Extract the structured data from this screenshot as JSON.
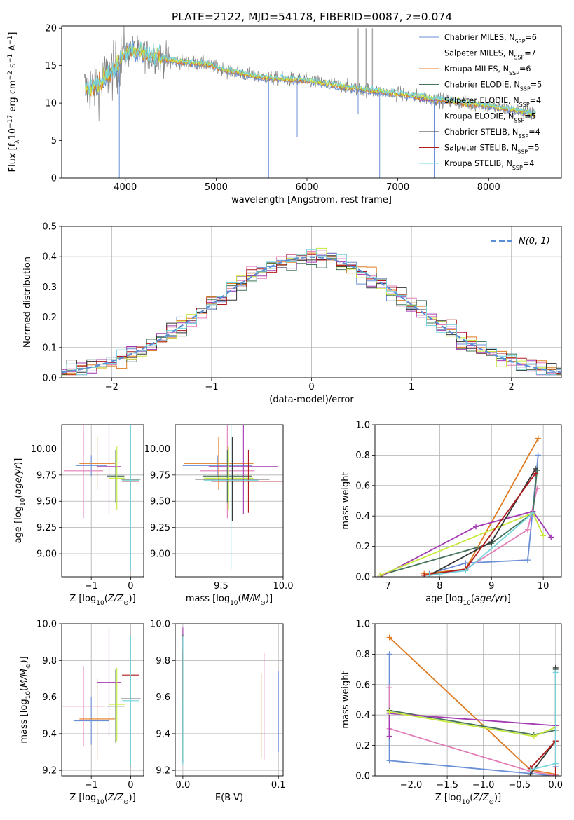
{
  "figure_title": "PLATE=2122, MJD=54178, FIBERID=0087, z=0.074",
  "colors": {
    "Chabrier MILES": "#6a8fd6",
    "Salpeter MILES": "#e27db6",
    "Kroupa MILES": "#e07b22",
    "Chabrier ELODIE": "#44735a",
    "Salpeter ELODIE": "#a33ab2",
    "Kroupa ELODIE": "#c7e83a",
    "Chabrier STELIB": "#333333",
    "Salpeter STELIB": "#b01a1a",
    "Kroupa STELIB": "#74d4dc",
    "data": "#808080",
    "normal_curve": "#5b8ed6"
  },
  "chart_data": [
    {
      "id": "spectrum",
      "type": "line",
      "xlabel": "wavelength [Angstrom, rest frame]",
      "ylabel": "Flux [f",
      "xlim": [
        3300,
        8800
      ],
      "ylim": [
        0,
        20.3
      ],
      "xticks": [
        4000,
        5000,
        6000,
        7000,
        8000
      ],
      "yticks": [
        0,
        5,
        10,
        15,
        20
      ],
      "grid": false,
      "legend": "top-right",
      "continuum": [
        [
          3550,
          12.0
        ],
        [
          3700,
          12.3
        ],
        [
          3800,
          13.6
        ],
        [
          3900,
          14.6
        ],
        [
          4000,
          16.8
        ],
        [
          4100,
          17.0
        ],
        [
          4300,
          16.2
        ],
        [
          4600,
          15.5
        ],
        [
          4900,
          15.2
        ],
        [
          5100,
          14.4
        ],
        [
          5500,
          13.4
        ],
        [
          6000,
          13.0
        ],
        [
          6500,
          12.0
        ],
        [
          7000,
          11.2
        ],
        [
          7300,
          10.7
        ],
        [
          7600,
          10.2
        ],
        [
          8000,
          9.6
        ],
        [
          8300,
          9.0
        ],
        [
          8500,
          8.5
        ]
      ],
      "absorption_lines": [
        [
          3934,
          0
        ],
        [
          5578,
          0
        ],
        [
          5892,
          5.5
        ],
        [
          6563,
          8.5
        ],
        [
          6800,
          0
        ],
        [
          7400,
          0
        ]
      ],
      "emission_lines": [
        [
          6563,
          20
        ],
        [
          6650,
          20
        ],
        [
          6720,
          20
        ]
      ],
      "legend_entries": [
        {
          "label": "Chabrier MILES, N",
          "sub": "SSP",
          "suffix": "=6"
        },
        {
          "label": "Salpeter MILES, N",
          "sub": "SSP",
          "suffix": "=7"
        },
        {
          "label": "Kroupa MILES, N",
          "sub": "SSP",
          "suffix": "=6"
        },
        {
          "label": "Chabrier ELODIE, N",
          "sub": "SSP",
          "suffix": "=5"
        },
        {
          "label": "Salpeter ELODIE, N",
          "sub": "SSP",
          "suffix": "=4"
        },
        {
          "label": "Kroupa ELODIE, N",
          "sub": "SSP",
          "suffix": "=5"
        },
        {
          "label": "Chabrier STELIB, N",
          "sub": "SSP",
          "suffix": "=4"
        },
        {
          "label": "Salpeter STELIB, N",
          "sub": "SSP",
          "suffix": "=5"
        },
        {
          "label": "Kroupa STELIB, N",
          "sub": "SSP",
          "suffix": "=4"
        }
      ]
    },
    {
      "id": "residuals",
      "type": "line",
      "xlabel": "(data-model)/error",
      "ylabel": "Normed distribution",
      "xlim": [
        -2.5,
        2.5
      ],
      "ylim": [
        0,
        0.5
      ],
      "xticks": [
        -2,
        -1,
        0,
        1,
        2
      ],
      "yticks": [
        0.0,
        0.1,
        0.2,
        0.3,
        0.4,
        0.5
      ],
      "grid": true,
      "legend": "top-right",
      "curve_label": "N(0, 1)",
      "bin_width": 0.1
    },
    {
      "id": "age_vs_Z",
      "type": "scatter",
      "xlabel": "Z [log",
      "ylabel": "age  [log",
      "xlim": [
        -1.75,
        0.33
      ],
      "ylim": [
        8.78,
        10.23
      ],
      "xticks": [
        -1,
        0
      ],
      "yticks": [
        9.0,
        9.25,
        9.5,
        9.75,
        10.0
      ],
      "grid": true,
      "points": [
        {
          "model": "Chabrier MILES",
          "x": -1.0,
          "xerr": 0.4,
          "y": 9.84,
          "yerr": 0.1
        },
        {
          "model": "Salpeter MILES",
          "x": -1.2,
          "xerr": 0.5,
          "y": 9.79,
          "yerr": 0.45
        },
        {
          "model": "Kroupa MILES",
          "x": -0.85,
          "xerr": 0.45,
          "y": 9.86,
          "yerr": 0.25
        },
        {
          "model": "Chabrier ELODIE",
          "x": -0.38,
          "xerr": 0.22,
          "y": 9.74,
          "yerr": 0.25
        },
        {
          "model": "Salpeter ELODIE",
          "x": -0.55,
          "xerr": 0.3,
          "y": 9.83,
          "yerr": 0.45
        },
        {
          "model": "Kroupa ELODIE",
          "x": -0.35,
          "xerr": 0.2,
          "y": 9.72,
          "yerr": 0.3
        },
        {
          "model": "Chabrier STELIB",
          "x": 0.0,
          "xerr": 0.25,
          "y": 9.71,
          "yerr": 0.4
        },
        {
          "model": "Salpeter STELIB",
          "x": 0.0,
          "xerr": 0.22,
          "y": 9.69,
          "yerr": 0.3
        },
        {
          "model": "Kroupa STELIB",
          "x": 0.0,
          "xerr": 0.22,
          "y": 9.7,
          "yerr": 0.85
        }
      ]
    },
    {
      "id": "age_vs_mass",
      "type": "scatter",
      "xlabel": "mass [log",
      "ylabel": "",
      "xlim": [
        9.13,
        10.0
      ],
      "ylim": [
        8.78,
        10.23
      ],
      "xticks": [
        9.5,
        10.0
      ],
      "yticks": [
        9.0,
        9.25,
        9.5,
        9.75,
        10.0
      ],
      "grid": true,
      "points": [
        {
          "model": "Chabrier MILES",
          "x": 9.47,
          "xerr": 0.28,
          "y": 9.84,
          "yerr": 0.1
        },
        {
          "model": "Salpeter MILES",
          "x": 9.55,
          "xerr": 0.22,
          "y": 9.79,
          "yerr": 0.45
        },
        {
          "model": "Kroupa MILES",
          "x": 9.48,
          "xerr": 0.28,
          "y": 9.86,
          "yerr": 0.25
        },
        {
          "model": "Chabrier ELODIE",
          "x": 9.55,
          "xerr": 0.2,
          "y": 9.74,
          "yerr": 0.25
        },
        {
          "model": "Salpeter ELODIE",
          "x": 9.68,
          "xerr": 0.28,
          "y": 9.83,
          "yerr": 0.45
        },
        {
          "model": "Kroupa ELODIE",
          "x": 9.56,
          "xerr": 0.2,
          "y": 9.72,
          "yerr": 0.3
        },
        {
          "model": "Chabrier STELIB",
          "x": 9.59,
          "xerr": 0.3,
          "y": 9.71,
          "yerr": 0.4
        },
        {
          "model": "Salpeter STELIB",
          "x": 9.72,
          "xerr": 0.3,
          "y": 9.69,
          "yerr": 0.3
        },
        {
          "model": "Kroupa STELIB",
          "x": 9.58,
          "xerr": 0.22,
          "y": 9.7,
          "yerr": 0.85
        }
      ]
    },
    {
      "id": "mass_weight_vs_age",
      "type": "line",
      "xlabel": "age  [log",
      "ylabel": "mass weight",
      "xlim": [
        6.75,
        10.35
      ],
      "ylim": [
        0,
        1.0
      ],
      "xticks": [
        7,
        8,
        9,
        10
      ],
      "yticks": [
        0.0,
        0.2,
        0.4,
        0.6,
        0.8,
        1.0
      ],
      "grid": true,
      "series": [
        {
          "model": "Chabrier MILES",
          "x": [
            7.8,
            8.5,
            9.7,
            9.9
          ],
          "y": [
            0.02,
            0.09,
            0.11,
            0.8
          ]
        },
        {
          "model": "Salpeter MILES",
          "x": [
            7.8,
            8.5,
            9.7,
            9.88
          ],
          "y": [
            0.01,
            0.05,
            0.31,
            0.58
          ]
        },
        {
          "model": "Kroupa MILES",
          "x": [
            7.7,
            8.5,
            9.9
          ],
          "y": [
            0.02,
            0.05,
            0.91
          ]
        },
        {
          "model": "Chabrier ELODIE",
          "x": [
            6.85,
            9.0,
            9.8,
            9.88
          ],
          "y": [
            0.01,
            0.22,
            0.42,
            0.7
          ]
        },
        {
          "model": "Salpeter ELODIE",
          "x": [
            6.85,
            8.7,
            9.8,
            10.15
          ],
          "y": [
            0.0,
            0.33,
            0.43,
            0.26
          ]
        },
        {
          "model": "Kroupa ELODIE",
          "x": [
            6.85,
            9.8,
            10.0
          ],
          "y": [
            0.01,
            0.42,
            0.27
          ]
        },
        {
          "model": "Chabrier STELIB",
          "x": [
            7.8,
            9.0,
            9.85
          ],
          "y": [
            0.01,
            0.23,
            0.71
          ]
        },
        {
          "model": "Salpeter STELIB",
          "x": [
            7.7,
            8.5,
            9.85
          ],
          "y": [
            0.01,
            0.05,
            0.68
          ]
        },
        {
          "model": "Kroupa STELIB",
          "x": [
            7.8,
            8.5,
            9.8
          ],
          "y": [
            0.01,
            0.04,
            0.42
          ]
        }
      ]
    },
    {
      "id": "mass_vs_Z",
      "type": "scatter",
      "xlabel": "Z [log",
      "ylabel": "mass [log",
      "xlim": [
        -1.75,
        0.33
      ],
      "ylim": [
        9.17,
        10.0
      ],
      "xticks": [
        -1,
        0
      ],
      "yticks": [
        9.2,
        9.4,
        9.6,
        9.8,
        10.0
      ],
      "grid": true,
      "points": [
        {
          "model": "Chabrier MILES",
          "x": -1.0,
          "xerr": 0.45,
          "y": 9.47,
          "yerr": 0.13
        },
        {
          "model": "Salpeter MILES",
          "x": -1.2,
          "xerr": 0.55,
          "y": 9.55,
          "yerr": 0.22
        },
        {
          "model": "Kroupa MILES",
          "x": -0.85,
          "xerr": 0.45,
          "y": 9.48,
          "yerr": 0.22
        },
        {
          "model": "Chabrier ELODIE",
          "x": -0.38,
          "xerr": 0.22,
          "y": 9.55,
          "yerr": 0.2
        },
        {
          "model": "Salpeter ELODIE",
          "x": -0.55,
          "xerr": 0.3,
          "y": 9.68,
          "yerr": 0.3
        },
        {
          "model": "Kroupa ELODIE",
          "x": -0.35,
          "xerr": 0.2,
          "y": 9.56,
          "yerr": 0.2
        },
        {
          "model": "Chabrier STELIB",
          "x": 0.0,
          "xerr": 0.25,
          "y": 9.59,
          "yerr": 0.3
        },
        {
          "model": "Salpeter STELIB",
          "x": 0.0,
          "xerr": 0.22,
          "y": 9.72,
          "yerr": 0.13
        },
        {
          "model": "Kroupa STELIB",
          "x": 0.0,
          "xerr": 0.22,
          "y": 9.58,
          "yerr": 0.35
        }
      ]
    },
    {
      "id": "mass_vs_EBV",
      "type": "scatter",
      "xlabel": "E(B-V)",
      "ylabel": "",
      "xlim": [
        -0.008,
        0.105
      ],
      "ylim": [
        9.17,
        10.0
      ],
      "xticks": [
        0.0,
        0.1
      ],
      "yticks": [
        9.2,
        9.4,
        9.6,
        9.8,
        10.0
      ],
      "grid": true,
      "points": [
        {
          "model": "Chabrier MILES",
          "x": 0.1,
          "xerr": 0,
          "y": 9.52,
          "yerr": 0.22
        },
        {
          "model": "Salpeter MILES",
          "x": 0.085,
          "xerr": 0,
          "y": 9.55,
          "yerr": 0.29
        },
        {
          "model": "Kroupa MILES",
          "x": 0.082,
          "xerr": 0,
          "y": 9.5,
          "yerr": 0.23
        },
        {
          "model": "Chabrier ELODIE",
          "x": 0.0,
          "xerr": 0,
          "y": 9.55,
          "yerr": 0.3
        },
        {
          "model": "Salpeter ELODIE",
          "x": 0.0,
          "xerr": 0,
          "y": 9.68,
          "yerr": 0.3
        },
        {
          "model": "Kroupa ELODIE",
          "x": 0.0,
          "xerr": 0,
          "y": 9.56,
          "yerr": 0.3
        },
        {
          "model": "Chabrier STELIB",
          "x": 0.0,
          "xerr": 0,
          "y": 9.59,
          "yerr": 0.35
        },
        {
          "model": "Salpeter STELIB",
          "x": 0.0,
          "xerr": 0,
          "y": 9.72,
          "yerr": 0.13
        },
        {
          "model": "Kroupa STELIB",
          "x": 0.0,
          "xerr": 0,
          "y": 9.58,
          "yerr": 0.35
        }
      ]
    },
    {
      "id": "mass_weight_vs_Z",
      "type": "line",
      "xlabel": "Z [log",
      "ylabel": "mass weight",
      "xlim": [
        -2.5,
        0.08
      ],
      "ylim": [
        0,
        1.0
      ],
      "xticks": [
        -2.0,
        -1.5,
        -1.0,
        -0.5,
        0.0
      ],
      "yticks": [
        0.0,
        0.2,
        0.4,
        0.6,
        0.8,
        1.0
      ],
      "grid": true,
      "series": [
        {
          "model": "Chabrier MILES",
          "x": [
            -2.3,
            -2.3,
            0.0,
            0.0
          ],
          "y": [
            0.8,
            0.1,
            0.0,
            0.06
          ]
        },
        {
          "model": "Salpeter MILES",
          "x": [
            -2.3,
            -2.3,
            -0.35,
            0.0
          ],
          "y": [
            0.58,
            0.31,
            0.03,
            0.0
          ]
        },
        {
          "model": "Kroupa MILES",
          "x": [
            -2.3,
            -0.35,
            0.0
          ],
          "y": [
            0.91,
            0.04,
            0.01
          ]
        },
        {
          "model": "Chabrier ELODIE",
          "x": [
            -2.3,
            -0.3,
            0.0,
            0.0
          ],
          "y": [
            0.43,
            0.27,
            0.3,
            0.7
          ]
        },
        {
          "model": "Salpeter ELODIE",
          "x": [
            -2.3,
            -2.3,
            0.0
          ],
          "y": [
            0.26,
            0.41,
            0.33
          ]
        },
        {
          "model": "Kroupa ELODIE",
          "x": [
            -2.3,
            -0.3,
            0.0
          ],
          "y": [
            0.42,
            0.26,
            0.32
          ]
        },
        {
          "model": "Chabrier STELIB",
          "x": [
            -0.35,
            0.0,
            0.0
          ],
          "y": [
            0.01,
            0.23,
            0.71
          ]
        },
        {
          "model": "Salpeter STELIB",
          "x": [
            -0.35,
            0.0,
            0.0
          ],
          "y": [
            0.05,
            0.23,
            0.01
          ]
        },
        {
          "model": "Kroupa STELIB",
          "x": [
            -0.35,
            0.0,
            0.0
          ],
          "y": [
            0.04,
            0.08,
            0.68
          ]
        }
      ]
    }
  ]
}
